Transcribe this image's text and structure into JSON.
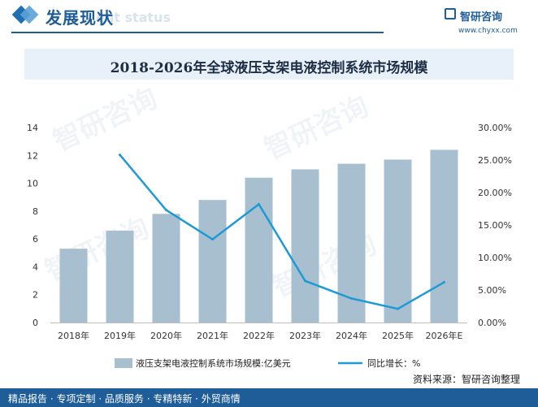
{
  "header": {
    "title": "发展现状",
    "ghost_text": "ent status"
  },
  "brand": {
    "name": "智研咨询",
    "url": "www.chyxx.com"
  },
  "watermark": "智研咨询",
  "colors": {
    "bar": "#a7bfcf",
    "line": "#1f9ad6",
    "header": "#1f5d99"
  },
  "footer": {
    "text": "精品报告 · 专项定制 · 品质服务 · 专精特新 · 外贸商情"
  },
  "source": {
    "text": "资料来源：智研咨询整理"
  },
  "chart_data": {
    "type": "bar",
    "title": "2018-2026年全球液压支架电液控制系统市场规模",
    "categories": [
      "2018年",
      "2019年",
      "2020年",
      "2021年",
      "2022年",
      "2023年",
      "2024年",
      "2025年",
      "2026年E"
    ],
    "series": [
      {
        "name": "液压支架电液控制系统市场规模:亿美元",
        "type": "bar",
        "axis": "left",
        "values": [
          5.3,
          6.6,
          7.8,
          8.8,
          10.4,
          11.0,
          11.4,
          11.7,
          12.4
        ]
      },
      {
        "name": "同比增长：%",
        "type": "line",
        "axis": "right",
        "values": [
          null,
          25.8,
          17.3,
          12.8,
          18.2,
          6.4,
          3.7,
          2.1,
          6.2
        ]
      }
    ],
    "y_left": {
      "min": 0,
      "max": 14,
      "ticks": [
        "0",
        "2",
        "4",
        "6",
        "8",
        "10",
        "12",
        "14"
      ]
    },
    "y_right": {
      "min": 0,
      "max": 30,
      "ticks": [
        "0.00%",
        "5.00%",
        "10.00%",
        "15.00%",
        "20.00%",
        "25.00%",
        "30.00%"
      ]
    },
    "grid": false,
    "legend": "bottom"
  }
}
